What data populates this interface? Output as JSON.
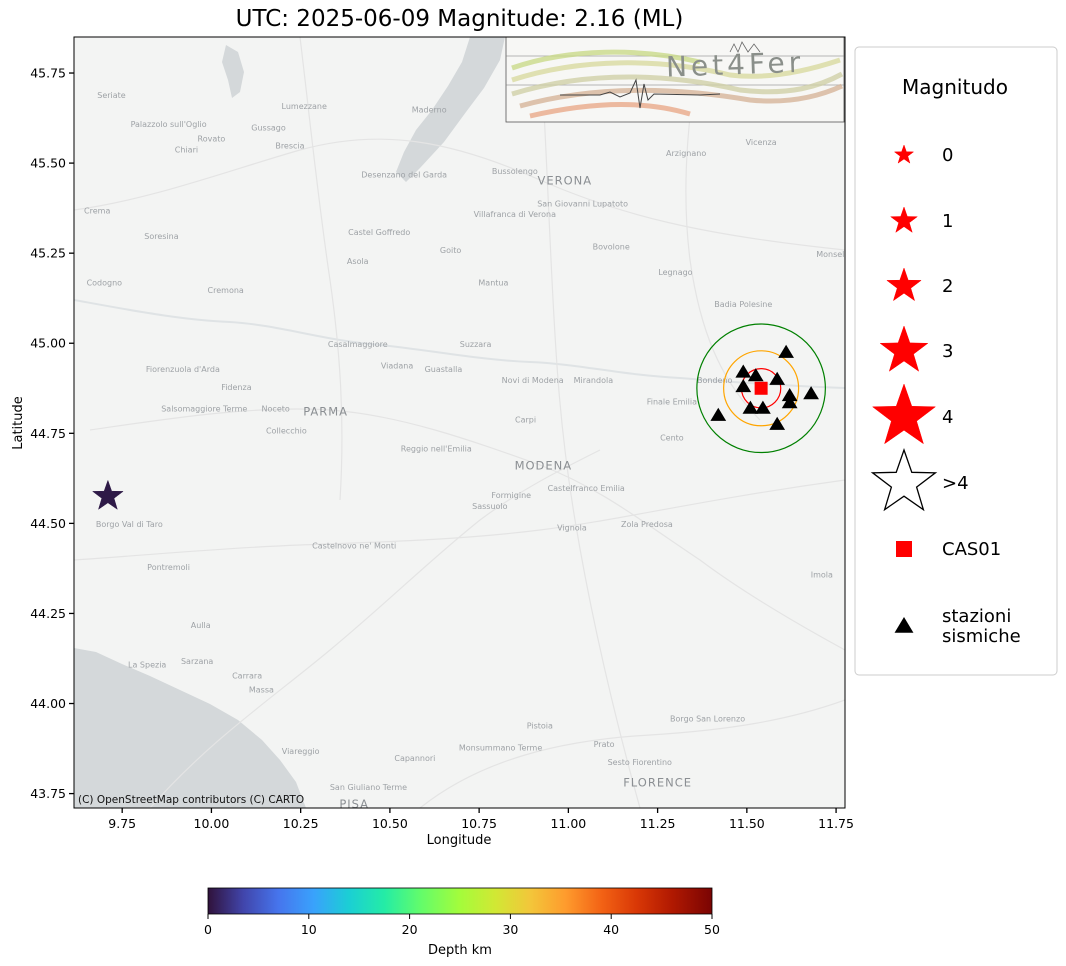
{
  "title": "UTC: 2025-06-09 Magnitude: 2.16 (ML)",
  "map": {
    "x_label": "Longitude",
    "y_label": "Latitude",
    "x_range": [
      9.615,
      11.775
    ],
    "y_range": [
      43.71,
      45.85
    ],
    "x_ticks": [
      {
        "value": 9.75,
        "label": "9.75"
      },
      {
        "value": 10.0,
        "label": "10.00"
      },
      {
        "value": 10.25,
        "label": "10.25"
      },
      {
        "value": 10.5,
        "label": "10.50"
      },
      {
        "value": 10.75,
        "label": "10.75"
      },
      {
        "value": 11.0,
        "label": "11.00"
      },
      {
        "value": 11.25,
        "label": "11.25"
      },
      {
        "value": 11.5,
        "label": "11.50"
      },
      {
        "value": 11.75,
        "label": "11.75"
      }
    ],
    "y_ticks": [
      {
        "value": 43.75,
        "label": "43.75"
      },
      {
        "value": 44.0,
        "label": "44.00"
      },
      {
        "value": 44.25,
        "label": "44.25"
      },
      {
        "value": 44.5,
        "label": "44.50"
      },
      {
        "value": 44.75,
        "label": "44.75"
      },
      {
        "value": 45.0,
        "label": "45.00"
      },
      {
        "value": 45.25,
        "label": "45.25"
      },
      {
        "value": 45.5,
        "label": "45.50"
      },
      {
        "value": 45.75,
        "label": "45.75"
      }
    ],
    "attribution": "(C) OpenStreetMap contributors (C) CARTO",
    "colors": {
      "land": "#f3f4f3",
      "water": "#d4d8da",
      "roads": "#e6e6e6"
    },
    "place_labels": [
      {
        "name": "VERONA",
        "lon": 10.99,
        "lat": 45.44,
        "major": true
      },
      {
        "name": "PARMA",
        "lon": 10.32,
        "lat": 44.8,
        "major": true
      },
      {
        "name": "MODENA",
        "lon": 10.93,
        "lat": 44.65,
        "major": true
      },
      {
        "name": "FLORENCE",
        "lon": 11.25,
        "lat": 43.77,
        "major": true
      },
      {
        "name": "PISA",
        "lon": 10.4,
        "lat": 43.71,
        "major": true
      },
      {
        "name": "Cremona",
        "lon": 10.04,
        "lat": 45.14,
        "major": false
      },
      {
        "name": "Brescia",
        "lon": 10.22,
        "lat": 45.54,
        "major": false
      },
      {
        "name": "Mantua",
        "lon": 10.79,
        "lat": 45.16,
        "major": false
      },
      {
        "name": "Reggio nell'Emilia",
        "lon": 10.63,
        "lat": 44.7,
        "major": false
      },
      {
        "name": "La Spezia",
        "lon": 9.82,
        "lat": 44.1,
        "major": false
      },
      {
        "name": "Carpi",
        "lon": 10.88,
        "lat": 44.78,
        "major": false
      },
      {
        "name": "Mirandola",
        "lon": 11.07,
        "lat": 44.89,
        "major": false
      },
      {
        "name": "Legnago",
        "lon": 11.3,
        "lat": 45.19,
        "major": false
      },
      {
        "name": "Vicenza",
        "lon": 11.54,
        "lat": 45.55,
        "major": false
      },
      {
        "name": "Imola",
        "lon": 11.71,
        "lat": 44.35,
        "major": false
      },
      {
        "name": "Pistoia",
        "lon": 10.92,
        "lat": 43.93,
        "major": false
      },
      {
        "name": "Prato",
        "lon": 11.1,
        "lat": 43.88,
        "major": false
      },
      {
        "name": "Viareggio",
        "lon": 10.25,
        "lat": 43.86,
        "major": false
      },
      {
        "name": "Sassuolo",
        "lon": 10.78,
        "lat": 44.54,
        "major": false
      },
      {
        "name": "Cento",
        "lon": 11.29,
        "lat": 44.73,
        "major": false
      },
      {
        "name": "Finale Emilia",
        "lon": 11.29,
        "lat": 44.83,
        "major": false
      },
      {
        "name": "Bovolone",
        "lon": 11.12,
        "lat": 45.26,
        "major": false
      },
      {
        "name": "Asola",
        "lon": 10.41,
        "lat": 45.22,
        "major": false
      },
      {
        "name": "Suzzara",
        "lon": 10.74,
        "lat": 44.99,
        "major": false
      },
      {
        "name": "Fidenza",
        "lon": 10.07,
        "lat": 44.87,
        "major": false
      },
      {
        "name": "Vignola",
        "lon": 11.01,
        "lat": 44.48,
        "major": false
      },
      {
        "name": "Massa",
        "lon": 10.14,
        "lat": 44.03,
        "major": false
      },
      {
        "name": "Carrara",
        "lon": 10.1,
        "lat": 44.07,
        "major": false
      },
      {
        "name": "Sarzana",
        "lon": 9.96,
        "lat": 44.11,
        "major": false
      },
      {
        "name": "Codogno",
        "lon": 9.7,
        "lat": 45.16,
        "major": false
      },
      {
        "name": "Crema",
        "lon": 9.68,
        "lat": 45.36,
        "major": false
      },
      {
        "name": "Chiari",
        "lon": 9.93,
        "lat": 45.53,
        "major": false
      },
      {
        "name": "Rovato",
        "lon": 10.0,
        "lat": 45.56,
        "major": false
      },
      {
        "name": "Gussago",
        "lon": 10.16,
        "lat": 45.59,
        "major": false
      },
      {
        "name": "Lumezzane",
        "lon": 10.26,
        "lat": 45.65,
        "major": false
      },
      {
        "name": "Maderno",
        "lon": 10.61,
        "lat": 45.64,
        "major": false
      },
      {
        "name": "Bussolengo",
        "lon": 10.85,
        "lat": 45.47,
        "major": false
      },
      {
        "name": "Arzignano",
        "lon": 11.33,
        "lat": 45.52,
        "major": false
      },
      {
        "name": "Soresina",
        "lon": 9.86,
        "lat": 45.29,
        "major": false
      },
      {
        "name": "Castel Goffredo",
        "lon": 10.47,
        "lat": 45.3,
        "major": false
      },
      {
        "name": "Goito",
        "lon": 10.67,
        "lat": 45.25,
        "major": false
      },
      {
        "name": "Badia Polesine",
        "lon": 11.49,
        "lat": 45.1,
        "major": false
      },
      {
        "name": "Casalmaggiore",
        "lon": 10.41,
        "lat": 44.99,
        "major": false
      },
      {
        "name": "Viadana",
        "lon": 10.52,
        "lat": 44.93,
        "major": false
      },
      {
        "name": "Guastalla",
        "lon": 10.65,
        "lat": 44.92,
        "major": false
      },
      {
        "name": "Noceto",
        "lon": 10.18,
        "lat": 44.81,
        "major": false
      },
      {
        "name": "Collecchio",
        "lon": 10.21,
        "lat": 44.75,
        "major": false
      },
      {
        "name": "Formigine",
        "lon": 10.84,
        "lat": 44.57,
        "major": false
      },
      {
        "name": "Zola Predosa",
        "lon": 11.22,
        "lat": 44.49,
        "major": false
      },
      {
        "name": "Bondeno",
        "lon": 11.41,
        "lat": 44.89,
        "major": false
      },
      {
        "name": "Pontremoli",
        "lon": 9.88,
        "lat": 44.37,
        "major": false
      },
      {
        "name": "Aulla",
        "lon": 9.97,
        "lat": 44.21,
        "major": false
      },
      {
        "name": "Capannori",
        "lon": 10.57,
        "lat": 43.84,
        "major": false
      },
      {
        "name": "Monsummano Terme",
        "lon": 10.81,
        "lat": 43.87,
        "major": false
      },
      {
        "name": "Sesto Fiorentino",
        "lon": 11.2,
        "lat": 43.83,
        "major": false
      },
      {
        "name": "Borgo San Lorenzo",
        "lon": 11.39,
        "lat": 43.95,
        "major": false
      },
      {
        "name": "San Giuliano Terme",
        "lon": 10.44,
        "lat": 43.76,
        "major": false
      },
      {
        "name": "Castelnovo ne' Monti",
        "lon": 10.4,
        "lat": 44.43,
        "major": false
      },
      {
        "name": "Castelfranco Emilia",
        "lon": 11.05,
        "lat": 44.59,
        "major": false
      },
      {
        "name": "Salsomaggiore Terme",
        "lon": 9.98,
        "lat": 44.81,
        "major": false
      },
      {
        "name": "Fiorenzuola d'Arda",
        "lon": 9.92,
        "lat": 44.92,
        "major": false
      },
      {
        "name": "Borgo Val di Taro",
        "lon": 9.77,
        "lat": 44.49,
        "major": false
      },
      {
        "name": "Novi di Modena",
        "lon": 10.9,
        "lat": 44.89,
        "major": false
      },
      {
        "name": "Villafranca di Verona",
        "lon": 10.85,
        "lat": 45.35,
        "major": false
      },
      {
        "name": "San Giovanni Lupatoto",
        "lon": 11.04,
        "lat": 45.38,
        "major": false
      },
      {
        "name": "Palazzolo sull'Oglio",
        "lon": 9.88,
        "lat": 45.6,
        "major": false
      },
      {
        "name": "Seriate",
        "lon": 9.72,
        "lat": 45.68,
        "major": false
      },
      {
        "name": "Desenzano del Garda",
        "lon": 10.54,
        "lat": 45.46,
        "major": false
      },
      {
        "name": "Monselice",
        "lon": 11.75,
        "lat": 45.24,
        "major": false
      }
    ],
    "logo_text": "Net4Fer"
  },
  "event": {
    "lon": 9.71,
    "lat": 44.575,
    "magnitude": 2.16,
    "depth_km": 0.5,
    "color": "#2e1a47"
  },
  "station_main": {
    "name": "CAS01",
    "lon": 11.54,
    "lat": 44.875,
    "color": "#ff0000"
  },
  "rings": [
    {
      "radius_deg": 0.18,
      "color": "#008000"
    },
    {
      "radius_deg": 0.105,
      "color": "#ffa500"
    },
    {
      "radius_deg": 0.055,
      "color": "#ff0000"
    }
  ],
  "seismic_stations": [
    {
      "lon": 11.61,
      "lat": 44.975
    },
    {
      "lon": 11.49,
      "lat": 44.92
    },
    {
      "lon": 11.525,
      "lat": 44.91
    },
    {
      "lon": 11.585,
      "lat": 44.9
    },
    {
      "lon": 11.49,
      "lat": 44.88
    },
    {
      "lon": 11.62,
      "lat": 44.855
    },
    {
      "lon": 11.68,
      "lat": 44.86
    },
    {
      "lon": 11.62,
      "lat": 44.835
    },
    {
      "lon": 11.51,
      "lat": 44.82
    },
    {
      "lon": 11.545,
      "lat": 44.82
    },
    {
      "lon": 11.42,
      "lat": 44.8
    },
    {
      "lon": 11.585,
      "lat": 44.775
    }
  ],
  "legend": {
    "title": "Magnitudo",
    "items": [
      {
        "label": "0",
        "type": "star",
        "size": 10,
        "fill": "#ff0000"
      },
      {
        "label": "1",
        "type": "star",
        "size": 14,
        "fill": "#ff0000"
      },
      {
        "label": "2",
        "type": "star",
        "size": 18,
        "fill": "#ff0000"
      },
      {
        "label": "3",
        "type": "star",
        "size": 25,
        "fill": "#ff0000"
      },
      {
        "label": "4",
        "type": "star",
        "size": 33,
        "fill": "#ff0000"
      },
      {
        "label": ">4",
        "type": "star",
        "size": 33,
        "fill": "none"
      },
      {
        "label": "CAS01",
        "type": "square",
        "size": 8,
        "fill": "#ff0000"
      },
      {
        "label": "stazioni\nsismiche",
        "type": "triangle",
        "size": 9,
        "fill": "#000000"
      }
    ]
  },
  "colorbar": {
    "label": "Depth km",
    "range": [
      0,
      50
    ],
    "ticks": [
      {
        "value": 0,
        "label": "0"
      },
      {
        "value": 10,
        "label": "10"
      },
      {
        "value": 20,
        "label": "20"
      },
      {
        "value": 30,
        "label": "30"
      },
      {
        "value": 40,
        "label": "40"
      },
      {
        "value": 50,
        "label": "50"
      }
    ],
    "colormap": "turbo"
  }
}
